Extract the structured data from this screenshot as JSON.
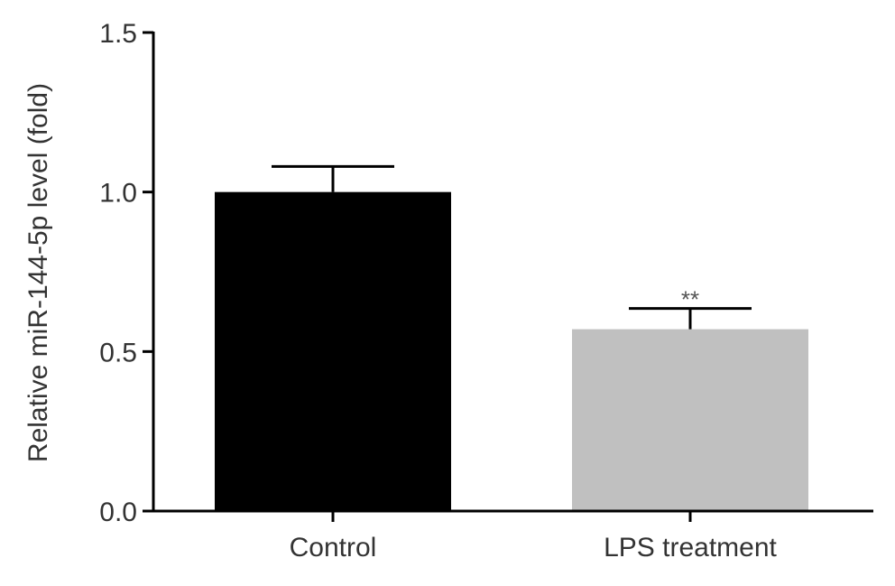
{
  "chart_data": {
    "type": "bar",
    "title": "",
    "xlabel": "",
    "ylabel": "Relative miR-144-5p level (fold)",
    "categories": [
      "Control",
      "LPS  treatment"
    ],
    "values": [
      1.0,
      0.57
    ],
    "errors": [
      0.08,
      0.065
    ],
    "bar_colors": [
      "#000000",
      "#c0c0c0"
    ],
    "annotations": [
      {
        "category_index": 1,
        "text": "**"
      }
    ],
    "ylim": [
      0,
      1.5
    ],
    "yticks": [
      {
        "value": 0.0,
        "label": "0.0"
      },
      {
        "value": 0.5,
        "label": "0.5"
      },
      {
        "value": 1.0,
        "label": "1.0"
      },
      {
        "value": 1.5,
        "label": "1.5"
      }
    ],
    "grid": false,
    "legend": "none"
  }
}
